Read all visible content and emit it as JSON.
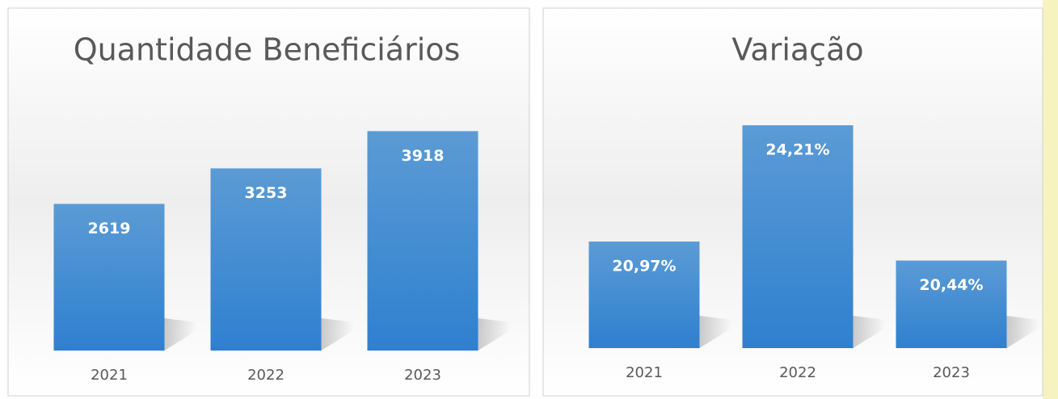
{
  "chart_data": [
    {
      "type": "bar",
      "title": "Quantidade Beneficiários",
      "categories": [
        "2021",
        "2022",
        "2023"
      ],
      "values": [
        2619,
        3253,
        3918
      ],
      "color": "#3f89d3",
      "ylim": [
        0,
        4500
      ]
    },
    {
      "type": "bar",
      "title": "Variação",
      "categories": [
        "2021",
        "2022",
        "2023"
      ],
      "values": [
        20.97,
        24.21,
        20.44
      ],
      "value_labels": [
        "20,97%",
        "24,21%",
        "20,44%"
      ],
      "color": "#3f89d3",
      "ylim": [
        18,
        25
      ]
    }
  ]
}
